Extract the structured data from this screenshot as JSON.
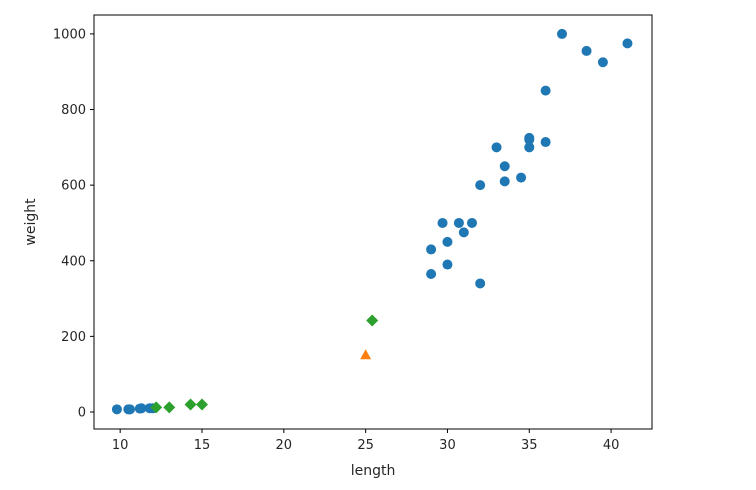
{
  "chart_data": {
    "type": "scatter",
    "xlabel": "length",
    "ylabel": "weight",
    "xlim": [
      8.4,
      42.5
    ],
    "ylim": [
      -45,
      1050
    ],
    "xticks": [
      10,
      15,
      20,
      25,
      30,
      35,
      40
    ],
    "yticks": [
      0,
      200,
      400,
      600,
      800,
      1000
    ],
    "grid": false,
    "series": [
      {
        "marker": "circle",
        "color": "#1f77b4",
        "points": [
          [
            9.8,
            7
          ],
          [
            10.5,
            7
          ],
          [
            10.6,
            7
          ],
          [
            11.2,
            9
          ],
          [
            11.3,
            9.8
          ],
          [
            11.8,
            10
          ],
          [
            12.0,
            9.8
          ],
          [
            29.0,
            365
          ],
          [
            29.0,
            430
          ],
          [
            29.7,
            500
          ],
          [
            30.0,
            390
          ],
          [
            30.0,
            450
          ],
          [
            30.7,
            500
          ],
          [
            31.0,
            475
          ],
          [
            31.5,
            500
          ],
          [
            32.0,
            340
          ],
          [
            32.0,
            600
          ],
          [
            33.0,
            700
          ],
          [
            33.5,
            610
          ],
          [
            33.5,
            650
          ],
          [
            34.5,
            620
          ],
          [
            35.0,
            700
          ],
          [
            35.0,
            725
          ],
          [
            35.0,
            720
          ],
          [
            36.0,
            714
          ],
          [
            36.0,
            850
          ],
          [
            37.0,
            1000
          ],
          [
            38.5,
            955
          ],
          [
            39.5,
            925
          ],
          [
            41.0,
            975
          ]
        ]
      },
      {
        "marker": "triangle",
        "color": "#ff7f0e",
        "points": [
          [
            25,
            150
          ]
        ]
      },
      {
        "marker": "diamond",
        "color": "#2ca02c",
        "points": [
          [
            12.2,
            12.2
          ],
          [
            13.0,
            12.2
          ],
          [
            14.3,
            19.7
          ],
          [
            15.0,
            19.9
          ],
          [
            25.4,
            242
          ]
        ]
      }
    ]
  }
}
